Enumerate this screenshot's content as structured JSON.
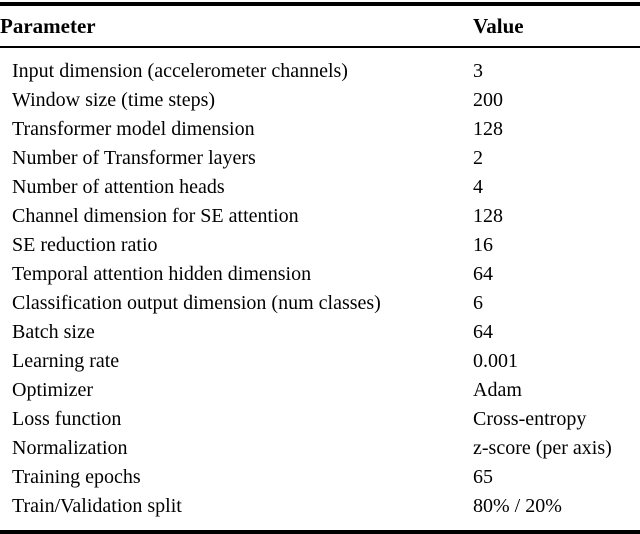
{
  "table": {
    "header": {
      "parameter": "Parameter",
      "value": "Value"
    },
    "rows": [
      {
        "parameter": "Input dimension (accelerometer channels)",
        "value": "3"
      },
      {
        "parameter": "Window size (time steps)",
        "value": "200"
      },
      {
        "parameter": "Transformer model dimension",
        "value": "128"
      },
      {
        "parameter": "Number of Transformer layers",
        "value": "2"
      },
      {
        "parameter": "Number of attention heads",
        "value": "4"
      },
      {
        "parameter": "Channel dimension for SE attention",
        "value": "128"
      },
      {
        "parameter": "SE reduction ratio",
        "value": "16"
      },
      {
        "parameter": "Temporal attention hidden dimension",
        "value": "64"
      },
      {
        "parameter": "Classification output dimension (num classes)",
        "value": "6"
      },
      {
        "parameter": "Batch size",
        "value": "64"
      },
      {
        "parameter": "Learning rate",
        "value": "0.001"
      },
      {
        "parameter": "Optimizer",
        "value": "Adam"
      },
      {
        "parameter": "Loss function",
        "value": "Cross-entropy"
      },
      {
        "parameter": "Normalization",
        "value": "z-score (per axis)"
      },
      {
        "parameter": "Training epochs",
        "value": "65"
      },
      {
        "parameter": "Train/Validation split",
        "value": "80% / 20%"
      }
    ]
  }
}
